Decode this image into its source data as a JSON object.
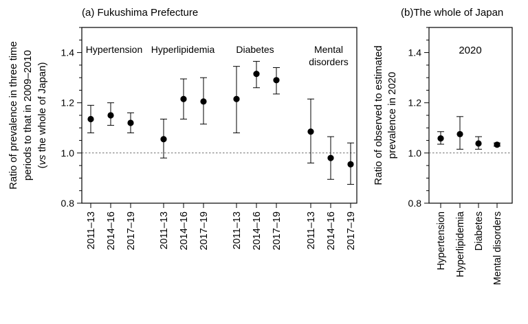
{
  "chart_data": [
    {
      "type": "scatter",
      "title": "(a) Fukushima Prefecture",
      "ylabel_lines": [
        "Ratio of prevalence in three time",
        "periods to that in 2009–2010",
        "(vs the whole of Japan)"
      ],
      "ylim": [
        0.8,
        1.5
      ],
      "yticks": [
        0.8,
        1.0,
        1.2,
        1.4
      ],
      "reference_line": 1.0,
      "groups": [
        {
          "name": "Hypertension",
          "label_lines": [
            "Hypertension"
          ]
        },
        {
          "name": "Hyperlipidemia",
          "label_lines": [
            "Hyperlipidemia"
          ]
        },
        {
          "name": "Diabetes",
          "label_lines": [
            "Diabetes"
          ]
        },
        {
          "name": "Mental disorders",
          "label_lines": [
            "Mental",
            "disorders"
          ]
        }
      ],
      "categories": [
        "2011–13",
        "2014–16",
        "2017–19"
      ],
      "points": [
        {
          "group": 0,
          "x": "2011–13",
          "y": 1.135,
          "lo": 1.08,
          "hi": 1.19
        },
        {
          "group": 0,
          "x": "2014–16",
          "y": 1.15,
          "lo": 1.11,
          "hi": 1.2
        },
        {
          "group": 0,
          "x": "2017–19",
          "y": 1.12,
          "lo": 1.08,
          "hi": 1.16
        },
        {
          "group": 1,
          "x": "2011–13",
          "y": 1.055,
          "lo": 0.98,
          "hi": 1.135
        },
        {
          "group": 1,
          "x": "2014–16",
          "y": 1.215,
          "lo": 1.135,
          "hi": 1.295
        },
        {
          "group": 1,
          "x": "2017–19",
          "y": 1.205,
          "lo": 1.115,
          "hi": 1.3
        },
        {
          "group": 2,
          "x": "2011–13",
          "y": 1.215,
          "lo": 1.08,
          "hi": 1.345
        },
        {
          "group": 2,
          "x": "2014–16",
          "y": 1.315,
          "lo": 1.26,
          "hi": 1.365
        },
        {
          "group": 2,
          "x": "2017–19",
          "y": 1.29,
          "lo": 1.235,
          "hi": 1.34
        },
        {
          "group": 3,
          "x": "2011–13",
          "y": 1.085,
          "lo": 0.96,
          "hi": 1.215
        },
        {
          "group": 3,
          "x": "2014–16",
          "y": 0.98,
          "lo": 0.895,
          "hi": 1.065
        },
        {
          "group": 3,
          "x": "2017–19",
          "y": 0.955,
          "lo": 0.875,
          "hi": 1.04
        }
      ]
    },
    {
      "type": "scatter",
      "title": "(b)The whole of Japan",
      "annotation": "2020",
      "ylabel_lines": [
        "Ratio of observed to estimated",
        "prevalence in 2020"
      ],
      "ylim": [
        0.8,
        1.5
      ],
      "yticks": [
        0.8,
        1.0,
        1.2,
        1.4
      ],
      "reference_line": 1.0,
      "categories": [
        "Hypertension",
        "Hyperlipidemia",
        "Diabetes",
        "Mental disorders"
      ],
      "points": [
        {
          "x": "Hypertension",
          "y": 1.058,
          "lo": 1.035,
          "hi": 1.085
        },
        {
          "x": "Hyperlipidemia",
          "y": 1.075,
          "lo": 1.015,
          "hi": 1.145
        },
        {
          "x": "Diabetes",
          "y": 1.038,
          "lo": 1.015,
          "hi": 1.065
        },
        {
          "x": "Mental disorders",
          "y": 1.033,
          "lo": 1.027,
          "hi": 1.04
        }
      ]
    }
  ]
}
